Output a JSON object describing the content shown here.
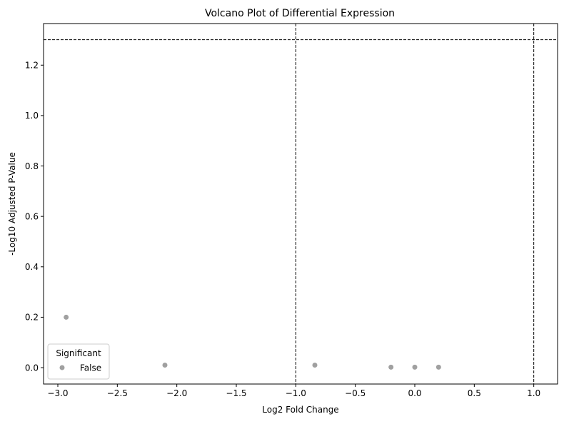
{
  "chart_data": {
    "type": "scatter",
    "title": "Volcano Plot of Differential Expression",
    "xlabel": "Log2 Fold Change",
    "ylabel": "-Log10 Adjusted P-Value",
    "xlim": [
      -3.12,
      1.2
    ],
    "ylim": [
      -0.065,
      1.365
    ],
    "xticks": [
      -3.0,
      -2.5,
      -2.0,
      -1.5,
      -1.0,
      -0.5,
      0.0,
      0.5,
      1.0
    ],
    "xtick_labels": [
      "−3.0",
      "−2.5",
      "−2.0",
      "−1.5",
      "−1.0",
      "−0.5",
      "0.0",
      "0.5",
      "1.0"
    ],
    "yticks": [
      0.0,
      0.2,
      0.4,
      0.6,
      0.8,
      1.0,
      1.2
    ],
    "ytick_labels": [
      "0.0",
      "0.2",
      "0.4",
      "0.6",
      "0.8",
      "1.0",
      "1.2"
    ],
    "grid": false,
    "series": [
      {
        "name": "False",
        "color": "#a0a0a0",
        "x": [
          -2.93,
          -2.1,
          -0.84,
          -0.2,
          0.0,
          0.2
        ],
        "y": [
          0.2,
          0.01,
          0.01,
          0.002,
          0.002,
          0.002
        ]
      }
    ],
    "reference_lines": {
      "vertical": [
        -1.0,
        1.0
      ],
      "horizontal": [
        1.301
      ],
      "color": "#000000",
      "style": "dashed"
    },
    "legend": {
      "title": "Significant",
      "placement": "lower-left",
      "entries": [
        "False"
      ]
    }
  }
}
